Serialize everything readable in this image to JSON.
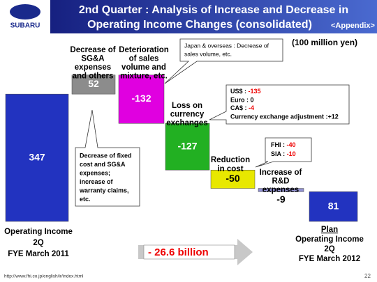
{
  "header": {
    "logo": "SUBARU",
    "title": [
      "2nd Quarter : Analysis of Increase and Decrease in",
      "Operating Income Changes (consolidated)"
    ],
    "tag": "<Appendix>"
  },
  "chart_data": {
    "type": "waterfall",
    "unit": "(100 million yen)",
    "categories": [
      [
        "Operating Income",
        "2Q",
        "FYE March 2011"
      ],
      [
        "Decrease of",
        "SG&A",
        "expenses",
        "and others"
      ],
      [
        "Deterioration",
        "of sales",
        "volume and",
        "mixture, etc."
      ],
      [
        "Loss on",
        "currency",
        "exchanges"
      ],
      [
        "Reduction",
        "in cost"
      ],
      [
        "Increase of",
        "R&D",
        "expenses"
      ],
      [
        "Plan",
        "Operating Income",
        "2Q",
        "FYE March 2012"
      ]
    ],
    "values": [
      347,
      52,
      -132,
      -127,
      -50,
      -9,
      81
    ],
    "totals": [
      true,
      false,
      false,
      false,
      false,
      false,
      true
    ],
    "colors": [
      "#2233c0",
      "#8c8c8c",
      "#e000e0",
      "#22b022",
      "#e8e800",
      "#9090d0",
      "#2233c0"
    ],
    "annotations": [
      {
        "lines": [
          [
            "Japan & overseas : Decrease of"
          ],
          [
            "sales volume, etc."
          ]
        ]
      },
      {
        "lines": [
          [
            "US$  : ",
            "-135"
          ],
          [
            "Euro : 0"
          ],
          [
            "CA$  : ",
            "-4"
          ],
          [
            "Currency exchange adjustment :+12"
          ]
        ]
      },
      {
        "lines": [
          [
            "FHI : ",
            "-40"
          ],
          [
            "SIA : ",
            "-10"
          ]
        ]
      },
      {
        "lines": [
          [
            "Decrease of fixed"
          ],
          [
            "cost and SG&A"
          ],
          [
            "expenses;"
          ],
          [
            "increase of"
          ],
          [
            "warranty claims,"
          ],
          [
            "etc."
          ]
        ]
      }
    ]
  },
  "summary": "- 26.6 billion",
  "footer": {
    "url": "http://www.fhi.co.jp/english/ir/index.html",
    "page": "22"
  }
}
